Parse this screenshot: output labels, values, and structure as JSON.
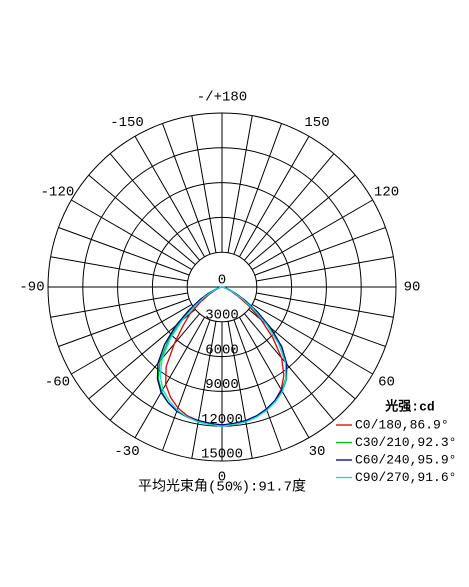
{
  "chart_data": {
    "type": "polar",
    "x": [
      -90,
      -85,
      -80,
      -75,
      -70,
      -65,
      -60,
      -55,
      -50,
      -45,
      -40,
      -35,
      -30,
      -25,
      -20,
      -15,
      -10,
      -5,
      0,
      5,
      10,
      15,
      20,
      25,
      30,
      35,
      40,
      45,
      50,
      55,
      60,
      65,
      70,
      75,
      80,
      85,
      90
    ],
    "series": [
      {
        "name": "C0/180,86.9°",
        "color": "#e00000",
        "values": [
          0,
          5,
          30,
          100,
          300,
          700,
          1300,
          2300,
          3600,
          4800,
          6400,
          8400,
          9700,
          10500,
          11100,
          11500,
          11700,
          11800,
          11900,
          11800,
          11700,
          11500,
          11200,
          10800,
          10200,
          9300,
          8000,
          6200,
          4400,
          2800,
          1600,
          850,
          380,
          140,
          40,
          8,
          0
        ]
      },
      {
        "name": "C30/210,92.3°",
        "color": "#00c000",
        "values": [
          0,
          10,
          60,
          200,
          550,
          1100,
          1900,
          3100,
          4800,
          6600,
          8300,
          9600,
          10400,
          11000,
          11400,
          11600,
          11800,
          11900,
          12000,
          11900,
          11800,
          11600,
          11300,
          10900,
          10400,
          9700,
          8700,
          7200,
          5300,
          3500,
          2100,
          1200,
          600,
          250,
          80,
          15,
          0
        ]
      },
      {
        "name": "C60/240,95.9°",
        "color": "#000080",
        "values": [
          0,
          15,
          80,
          250,
          650,
          1300,
          2200,
          3500,
          5200,
          7000,
          8600,
          9700,
          10500,
          11000,
          11400,
          11600,
          11700,
          11800,
          11900,
          11800,
          11700,
          11500,
          11200,
          10800,
          10300,
          9600,
          8700,
          7300,
          5500,
          3700,
          2300,
          1300,
          650,
          280,
          90,
          20,
          0
        ]
      },
      {
        "name": "C90/270,91.6°",
        "color": "#00e0e0",
        "values": [
          0,
          10,
          50,
          180,
          500,
          1000,
          1800,
          2900,
          4500,
          6300,
          8000,
          9300,
          10200,
          10800,
          11300,
          11600,
          11800,
          11900,
          12000,
          11900,
          11800,
          11600,
          11300,
          10900,
          10400,
          9600,
          8500,
          6900,
          5000,
          3300,
          2000,
          1100,
          520,
          220,
          70,
          12,
          0
        ]
      }
    ],
    "rlim": [
      0,
      15000
    ],
    "rticks": [
      0,
      3000,
      6000,
      9000,
      12000,
      15000
    ],
    "angle_ticks": [
      {
        "value": 180,
        "label": "-/+180"
      },
      150,
      120,
      90,
      60,
      30,
      0,
      -30,
      -60,
      -90,
      -120,
      -150
    ],
    "legend_title": "光强:cd",
    "caption": "平均光束角(50%):91.7度"
  }
}
